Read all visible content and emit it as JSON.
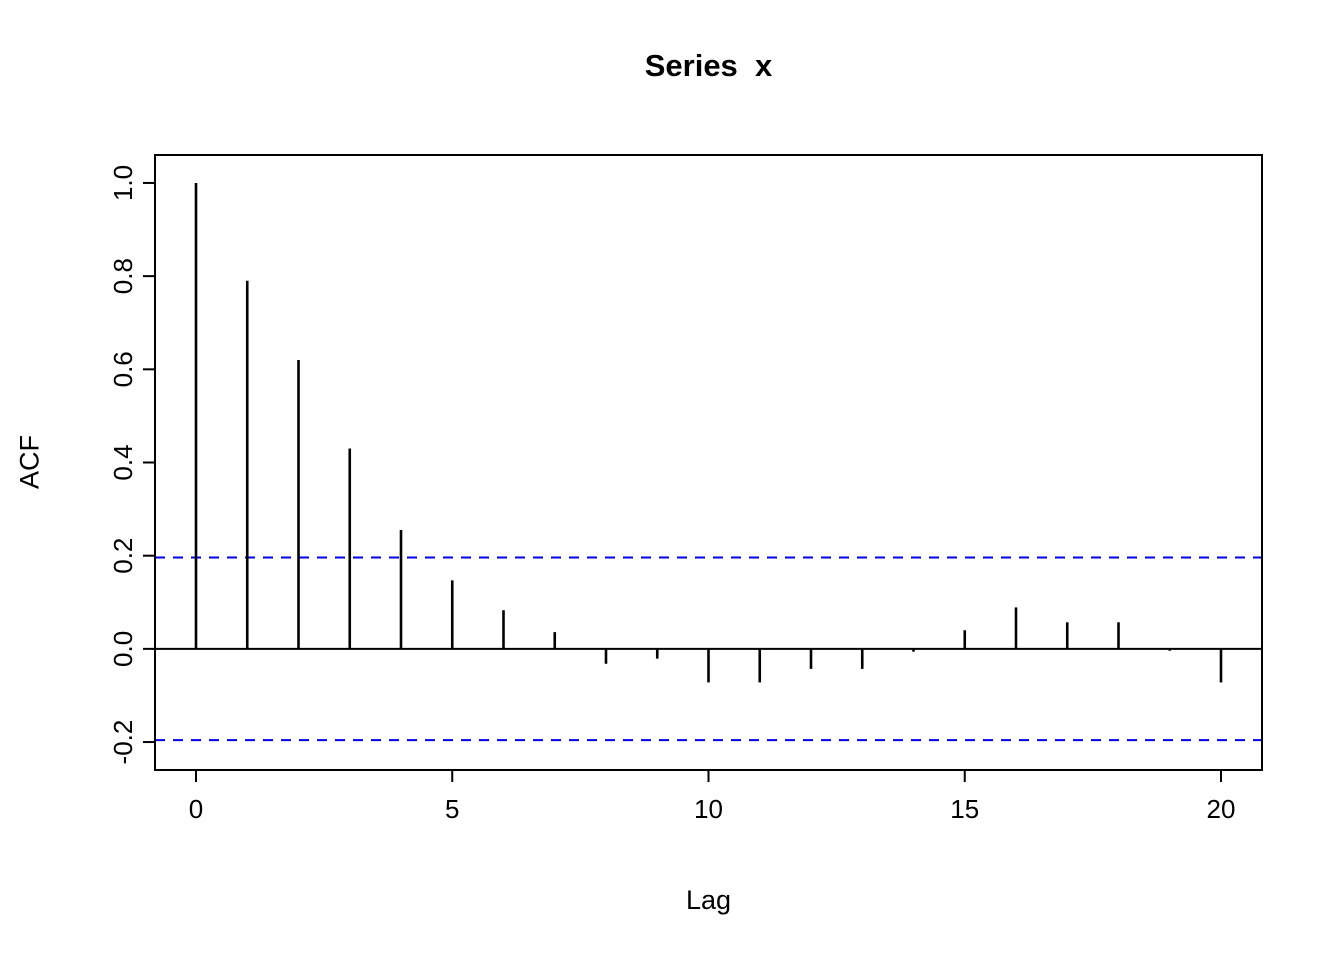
{
  "chart_data": {
    "type": "bar",
    "subtype": "acf-stem-plot",
    "title": "Series  x",
    "xlabel": "Lag",
    "ylabel": "ACF",
    "x": [
      0,
      1,
      2,
      3,
      4,
      5,
      6,
      7,
      8,
      9,
      10,
      11,
      12,
      13,
      14,
      15,
      16,
      17,
      18,
      19,
      20
    ],
    "values": [
      1.0,
      0.79,
      0.62,
      0.43,
      0.255,
      0.147,
      0.083,
      0.036,
      -0.032,
      -0.021,
      -0.072,
      -0.072,
      -0.043,
      -0.043,
      -0.006,
      0.04,
      0.089,
      0.057,
      0.057,
      -0.004,
      -0.072
    ],
    "confidence_bounds": [
      0.196,
      -0.196
    ],
    "xticks": [
      0,
      5,
      10,
      15,
      20
    ],
    "xtick_labels": [
      "0",
      "5",
      "10",
      "15",
      "20"
    ],
    "yticks": [
      -0.2,
      0.0,
      0.2,
      0.4,
      0.6,
      0.8,
      1.0
    ],
    "ytick_labels": [
      "-0.2",
      "0.0",
      "0.2",
      "0.4",
      "0.6",
      "0.8",
      "1.0"
    ],
    "xlim": [
      -0.8,
      20.8
    ],
    "ylim": [
      -0.26,
      1.06
    ],
    "grid": false,
    "legend": "none",
    "colors": {
      "stem": "#000000",
      "axis": "#000000",
      "confidence": "#0000EE",
      "background": "#FFFFFF"
    }
  }
}
